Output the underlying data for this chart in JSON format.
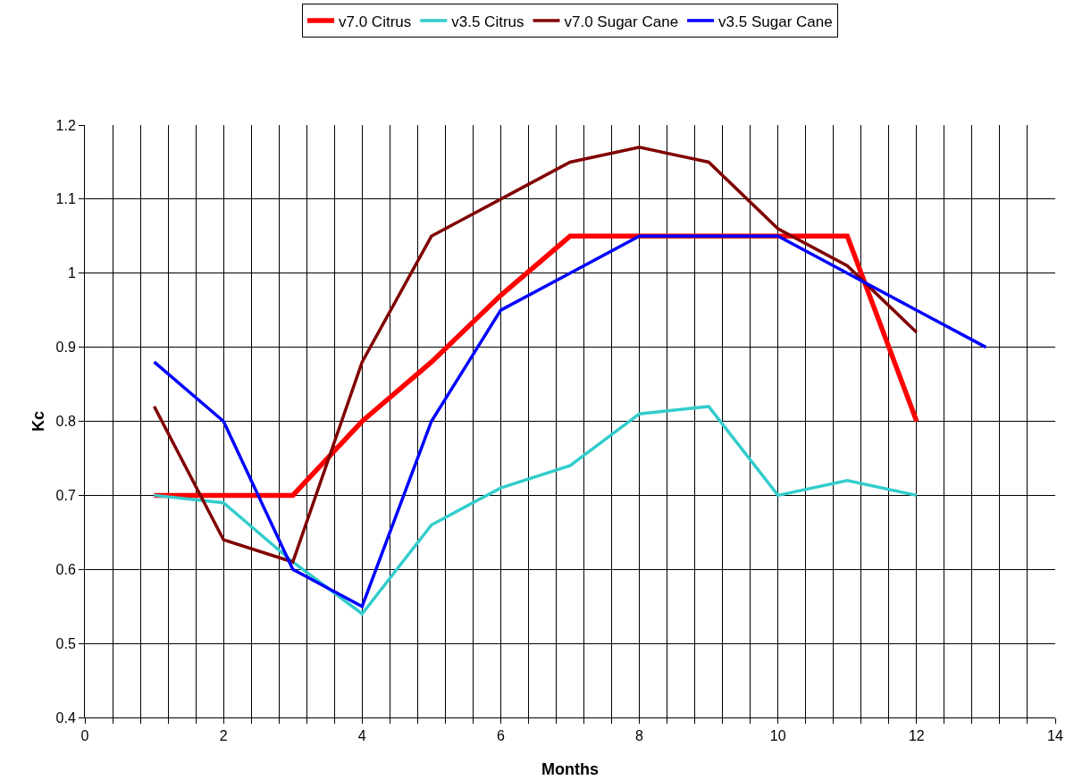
{
  "chart_data": {
    "type": "line",
    "xlabel": "Months",
    "ylabel": "Kc",
    "x": [
      1,
      2,
      3,
      4,
      5,
      6,
      7,
      8,
      9,
      10,
      11,
      12
    ],
    "series": [
      {
        "name": "v7.0 Citrus",
        "color": "#ff0000",
        "values": [
          0.7,
          0.7,
          0.7,
          0.8,
          0.88,
          0.97,
          1.05,
          1.05,
          1.05,
          1.05,
          1.05,
          0.8
        ]
      },
      {
        "name": "v3.5 Citrus",
        "color": "#33cccc",
        "values": [
          0.7,
          0.69,
          0.61,
          0.54,
          0.66,
          0.71,
          0.74,
          0.81,
          0.82,
          0.7,
          0.72,
          0.7
        ]
      },
      {
        "name": "v7.0 Sugar Cane",
        "color": "#800000",
        "values": [
          0.82,
          0.64,
          0.61,
          0.88,
          1.05,
          1.1,
          1.15,
          1.17,
          1.15,
          1.06,
          1.01,
          0.92
        ]
      },
      {
        "name": "v3.5 Sugar Cane",
        "color": "#0000ff",
        "x": [
          1,
          2,
          3,
          4,
          5,
          6,
          7,
          8,
          9,
          10,
          11,
          12,
          13
        ],
        "values": [
          0.88,
          0.8,
          0.6,
          0.55,
          0.8,
          0.95,
          1.0,
          1.05,
          1.05,
          1.05,
          1.0,
          0.95,
          0.9
        ]
      }
    ],
    "xlim": [
      0,
      14
    ],
    "xticks": [
      0,
      {
        "value": 0.4,
        "label": null
      },
      {
        "value": 0.8,
        "label": null
      },
      {
        "value": 1.2,
        "label": null
      },
      {
        "value": 1.6,
        "label": null
      },
      2,
      {
        "value": 2.4,
        "label": null
      },
      {
        "value": 2.8,
        "label": null
      },
      {
        "value": 3.2,
        "label": null
      },
      {
        "value": 3.6,
        "label": null
      },
      4,
      {
        "value": 4.4,
        "label": null
      },
      {
        "value": 4.8,
        "label": null
      },
      {
        "value": 5.2,
        "label": null
      },
      {
        "value": 5.6,
        "label": null
      },
      6,
      {
        "value": 6.4,
        "label": null
      },
      {
        "value": 6.8,
        "label": null
      },
      {
        "value": 7.2,
        "label": null
      },
      {
        "value": 7.6,
        "label": null
      },
      8,
      {
        "value": 8.4,
        "label": null
      },
      {
        "value": 8.8,
        "label": null
      },
      {
        "value": 9.2,
        "label": null
      },
      {
        "value": 9.6,
        "label": null
      },
      10,
      {
        "value": 10.4,
        "label": null
      },
      {
        "value": 10.8,
        "label": null
      },
      {
        "value": 11.2,
        "label": null
      },
      {
        "value": 11.6,
        "label": null
      },
      12,
      {
        "value": 12.4,
        "label": null
      },
      {
        "value": 12.8,
        "label": null
      },
      {
        "value": 13.2,
        "label": null
      },
      {
        "value": 13.6,
        "label": null
      },
      14
    ],
    "ylim": [
      0.4,
      1.2
    ],
    "yticks": [
      0.4,
      0.5,
      0.6,
      0.7,
      0.8,
      0.9,
      1,
      1.1,
      1.2
    ],
    "grid": true,
    "legend": "top",
    "marker": "none",
    "line_style": "solid"
  }
}
